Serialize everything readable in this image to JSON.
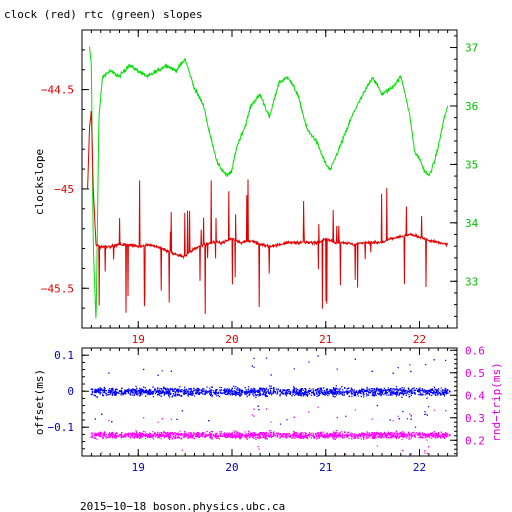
{
  "chart_data": [
    {
      "type": "line",
      "title": "clock (red) rtc (green) slopes",
      "ylabel": "clockslope",
      "xlim": [
        18.4,
        22.4
      ],
      "x_ticks": [
        19,
        20,
        21,
        22
      ],
      "x_tick_labels": [
        "19",
        "20",
        "21",
        "22"
      ],
      "ylim_left": [
        -45.7,
        -44.2
      ],
      "y_ticks_left": [
        -44.5,
        -45,
        -45.5
      ],
      "y_tick_labels_left": [
        "−44.5",
        "−45",
        "−45.5"
      ],
      "ylim_right": [
        32.2,
        37.3
      ],
      "y_ticks_right": [
        37,
        36,
        35,
        34,
        33
      ],
      "y_tick_labels_right": [
        "37",
        "36",
        "35",
        "34",
        "33"
      ],
      "series": [
        {
          "axis": "right",
          "color": "#00e000",
          "x": [
            18.48,
            18.5,
            18.52,
            18.55,
            18.58,
            18.62,
            18.7,
            18.8,
            18.9,
            19.0,
            19.1,
            19.2,
            19.3,
            19.4,
            19.5,
            19.6,
            19.7,
            19.75,
            19.8,
            19.85,
            19.9,
            19.95,
            20.0,
            20.05,
            20.1,
            20.15,
            20.2,
            20.3,
            20.4,
            20.5,
            20.6,
            20.7,
            20.8,
            20.9,
            21.0,
            21.05,
            21.1,
            21.2,
            21.3,
            21.4,
            21.5,
            21.6,
            21.7,
            21.8,
            21.85,
            21.9,
            21.95,
            22.0,
            22.05,
            22.1,
            22.15,
            22.2,
            22.25,
            22.3
          ],
          "y": [
            37.0,
            36.7,
            33.6,
            32.3,
            35.8,
            36.5,
            36.6,
            36.5,
            36.7,
            36.6,
            36.5,
            36.6,
            36.7,
            36.6,
            36.8,
            36.3,
            36.0,
            35.6,
            35.3,
            35.0,
            34.9,
            34.8,
            34.9,
            35.3,
            35.5,
            35.7,
            36.0,
            36.2,
            35.8,
            36.4,
            36.5,
            36.2,
            35.6,
            35.4,
            35.0,
            34.9,
            35.1,
            35.5,
            35.9,
            36.2,
            36.5,
            36.2,
            36.3,
            36.5,
            36.2,
            35.8,
            35.2,
            35.1,
            34.9,
            34.8,
            35.0,
            35.3,
            35.7,
            36.0
          ]
        },
        {
          "axis": "left",
          "color": "#e00000",
          "x": [
            18.46,
            18.48,
            18.5,
            18.52,
            18.55,
            18.6,
            18.7,
            18.8,
            18.9,
            19.0,
            19.1,
            19.2,
            19.3,
            19.4,
            19.5,
            19.6,
            19.7,
            19.8,
            19.9,
            20.0,
            20.1,
            20.2,
            20.3,
            20.4,
            20.5,
            20.6,
            20.7,
            20.8,
            20.9,
            21.0,
            21.1,
            21.2,
            21.3,
            21.4,
            21.5,
            21.6,
            21.7,
            21.8,
            21.9,
            22.0,
            22.1,
            22.2,
            22.3
          ],
          "y": [
            -45.0,
            -44.7,
            -44.6,
            -45.0,
            -45.28,
            -45.29,
            -45.29,
            -45.28,
            -45.28,
            -45.29,
            -45.28,
            -45.29,
            -45.31,
            -45.33,
            -45.34,
            -45.3,
            -45.28,
            -45.27,
            -45.27,
            -45.25,
            -45.27,
            -45.26,
            -45.28,
            -45.29,
            -45.28,
            -45.27,
            -45.27,
            -45.27,
            -45.27,
            -45.25,
            -45.27,
            -45.27,
            -45.28,
            -45.27,
            -45.27,
            -45.27,
            -45.25,
            -45.24,
            -45.23,
            -45.24,
            -45.26,
            -45.27,
            -45.28
          ]
        }
      ]
    },
    {
      "type": "scatter",
      "ylabel": "offset(ms)",
      "ylabel_right": "rnd−trip(ms)",
      "xlim": [
        18.4,
        22.4
      ],
      "x_ticks": [
        19,
        20,
        21,
        22
      ],
      "x_tick_labels": [
        "19",
        "20",
        "21",
        "22"
      ],
      "ylim_left": [
        -0.18,
        0.12
      ],
      "y_ticks_left": [
        0.1,
        0,
        -0.1
      ],
      "y_tick_labels_left": [
        "0.1",
        "0",
        "−0.1"
      ],
      "ylim_right": [
        0.13,
        0.61
      ],
      "y_ticks_right": [
        0.6,
        0.5,
        0.4,
        0.3,
        0.2
      ],
      "y_tick_labels_right": [
        "0.6",
        "0.5",
        "0.4",
        "0.3",
        "0.2"
      ],
      "series": [
        {
          "axis": "left",
          "color": "#0000ff",
          "x_range": [
            18.48,
            22.32
          ],
          "center": 0.0,
          "spread": 0.02
        },
        {
          "axis": "right",
          "color": "#ff00ff",
          "x_range": [
            18.48,
            22.32
          ],
          "center": 0.225,
          "spread": 0.025
        }
      ]
    }
  ],
  "footer": {
    "text": "2015−10−18 boson.physics.ubc.ca"
  },
  "colors": {
    "left_axis_top": "#e00000",
    "right_axis_top": "#00c000",
    "left_axis_bottom": "#0000c0",
    "right_axis_bottom": "#e000e0"
  }
}
